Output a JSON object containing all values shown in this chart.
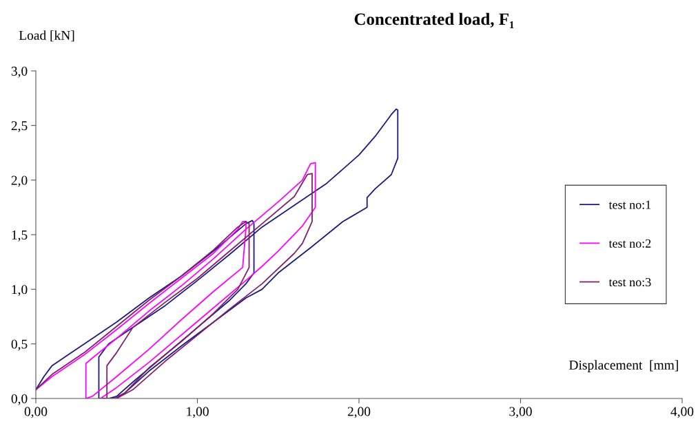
{
  "chart_data": {
    "type": "line",
    "title": "Concentrated load, F₁",
    "xlabel": "Displacement  [mm]",
    "ylabel": "Load [kN]",
    "xlim": [
      0,
      4
    ],
    "ylim": [
      0,
      3
    ],
    "xticks": [
      {
        "value": 0,
        "label": "0,00"
      },
      {
        "value": 1,
        "label": "1,00"
      },
      {
        "value": 2,
        "label": "2,00"
      },
      {
        "value": 3,
        "label": "3,00"
      },
      {
        "value": 4,
        "label": "4,00"
      }
    ],
    "yticks": [
      {
        "value": 0,
        "label": "0,0"
      },
      {
        "value": 0.5,
        "label": "0,5"
      },
      {
        "value": 1,
        "label": "1,0"
      },
      {
        "value": 1.5,
        "label": "1,5"
      },
      {
        "value": 2,
        "label": "2,0"
      },
      {
        "value": 2.5,
        "label": "2,5"
      },
      {
        "value": 3,
        "label": "3,0"
      }
    ],
    "grid": false,
    "legend": "right",
    "marker": "none",
    "line_style": "solid",
    "series": [
      {
        "name": "test no:1",
        "color": "#1a1a80",
        "x": [
          0,
          0.05,
          0.1,
          0.2,
          0.3,
          0.5,
          0.7,
          0.9,
          1.1,
          1.3,
          1.34,
          1.35,
          1.35,
          1.3,
          1.2,
          1.0,
          0.8,
          0.6,
          0.5,
          0.45,
          0.39,
          0.39,
          0.45,
          0.6,
          0.8,
          1.0,
          1.2,
          1.4,
          1.6,
          1.8,
          2.0,
          2.1,
          2.2,
          2.23,
          2.24,
          2.24,
          2.2,
          2.1,
          2.05,
          2.05,
          1.9,
          1.7,
          1.5,
          1.4,
          1.3,
          1.1,
          0.9,
          0.7,
          0.55,
          0.5
        ],
        "values": [
          0.08,
          0.2,
          0.3,
          0.4,
          0.5,
          0.7,
          0.92,
          1.12,
          1.35,
          1.6,
          1.63,
          1.6,
          1.15,
          1.05,
          0.9,
          0.65,
          0.4,
          0.15,
          0.02,
          0,
          0,
          0.38,
          0.5,
          0.65,
          0.85,
          1.08,
          1.32,
          1.57,
          1.77,
          1.97,
          2.23,
          2.4,
          2.6,
          2.65,
          2.64,
          2.2,
          2.05,
          1.92,
          1.84,
          1.75,
          1.62,
          1.38,
          1.15,
          1.0,
          0.92,
          0.7,
          0.48,
          0.25,
          0.05,
          0
        ]
      },
      {
        "name": "test no:2",
        "color": "#ff00ff",
        "x": [
          0,
          0.1,
          0.3,
          0.5,
          0.7,
          0.9,
          1.1,
          1.25,
          1.28,
          1.3,
          1.3,
          1.28,
          1.1,
          0.9,
          0.7,
          0.5,
          0.35,
          0.31,
          0.31,
          0.35,
          0.5,
          0.7,
          0.9,
          1.1,
          1.3,
          1.5,
          1.65,
          1.7,
          1.73,
          1.73,
          1.65,
          1.5,
          1.4,
          1.3,
          1.1,
          0.9,
          0.7,
          0.5,
          0.4
        ],
        "values": [
          0.08,
          0.2,
          0.4,
          0.63,
          0.87,
          1.1,
          1.33,
          1.55,
          1.62,
          1.62,
          1.55,
          1.2,
          0.98,
          0.72,
          0.45,
          0.2,
          0.02,
          0,
          0.32,
          0.37,
          0.55,
          0.8,
          1.03,
          1.28,
          1.55,
          1.8,
          2.0,
          2.15,
          2.16,
          1.75,
          1.58,
          1.35,
          1.21,
          1.08,
          0.83,
          0.58,
          0.33,
          0.1,
          0
        ]
      },
      {
        "name": "test no:3",
        "color": "#80206e",
        "x": [
          0,
          0.1,
          0.3,
          0.5,
          0.7,
          0.9,
          1.1,
          1.25,
          1.3,
          1.32,
          1.32,
          1.25,
          1.1,
          0.9,
          0.7,
          0.55,
          0.48,
          0.44,
          0.44,
          0.5,
          0.6,
          0.8,
          1.0,
          1.2,
          1.4,
          1.6,
          1.68,
          1.71,
          1.71,
          1.65,
          1.6,
          1.4,
          1.2,
          1.0,
          0.8,
          0.6,
          0.5
        ],
        "values": [
          0.08,
          0.22,
          0.42,
          0.66,
          0.9,
          1.12,
          1.36,
          1.57,
          1.62,
          1.6,
          1.2,
          1.0,
          0.78,
          0.52,
          0.28,
          0.05,
          0,
          0,
          0.3,
          0.42,
          0.65,
          0.88,
          1.1,
          1.35,
          1.6,
          1.85,
          2.05,
          2.06,
          1.62,
          1.42,
          1.33,
          1.05,
          0.82,
          0.58,
          0.34,
          0.08,
          0
        ]
      }
    ]
  }
}
